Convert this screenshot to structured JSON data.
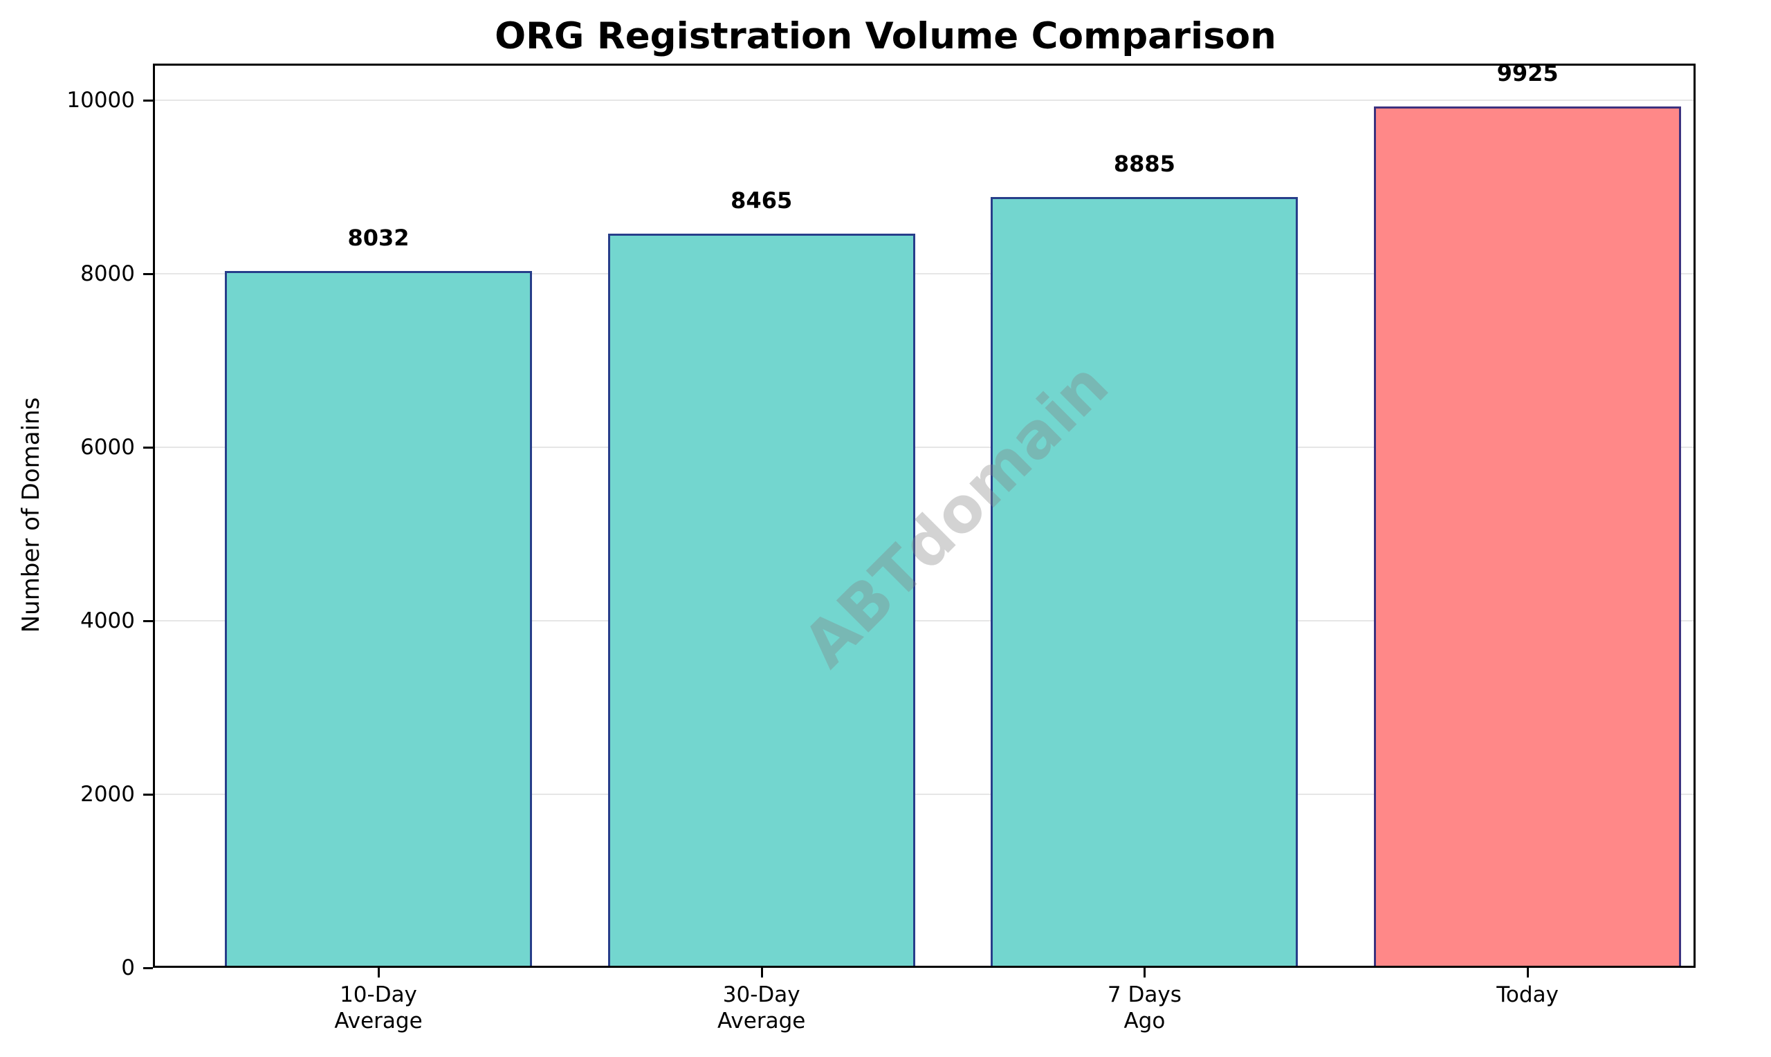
{
  "chart_data": {
    "type": "bar",
    "title": "ORG Registration Volume Comparison",
    "xlabel": "",
    "ylabel": "Number of Domains",
    "categories": [
      "10-Day\nAverage",
      "30-Day\nAverage",
      "7 Days\nAgo",
      "Today"
    ],
    "values": [
      8032,
      8465,
      8885,
      9925
    ],
    "value_labels": [
      "8032",
      "8465",
      "8885",
      "9925"
    ],
    "bar_colors": [
      "#73d6cf",
      "#73d6cf",
      "#73d6cf",
      "#ff8888"
    ],
    "edge_color": "#1a237e",
    "ylim": [
      0,
      10400
    ],
    "yticks": [
      0,
      2000,
      4000,
      6000,
      8000,
      10000
    ],
    "ytick_labels": [
      "0",
      "2000",
      "4000",
      "6000",
      "8000",
      "10000"
    ],
    "grid": "y",
    "legend": null,
    "watermark": "ABTdomain"
  }
}
